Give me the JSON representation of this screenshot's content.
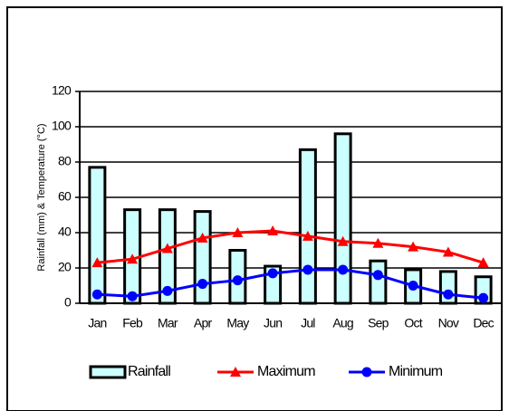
{
  "chart_data": {
    "type": "combo",
    "ylabel": "Rainfall (mm) & Temperature (°C)",
    "categories": [
      "Jan",
      "Feb",
      "Mar",
      "Apr",
      "May",
      "Jun",
      "Jul",
      "Aug",
      "Sep",
      "Oct",
      "Nov",
      "Dec"
    ],
    "series": [
      {
        "name": "Rainfall",
        "type": "bar",
        "color": "#ccffff",
        "values": [
          77,
          53,
          53,
          52,
          30,
          21,
          87,
          96,
          24,
          19,
          18,
          15
        ]
      },
      {
        "name": "Maximum",
        "type": "line",
        "marker": "triangle",
        "color": "#ff0000",
        "values": [
          23,
          25,
          31,
          37,
          40,
          41,
          38,
          35,
          34,
          32,
          29,
          23
        ]
      },
      {
        "name": "Minimum",
        "type": "line",
        "marker": "circle",
        "color": "#0000ff",
        "values": [
          5,
          4,
          7,
          11,
          13,
          17,
          19,
          19,
          16,
          10,
          5,
          3
        ]
      }
    ],
    "ylim": [
      0,
      120
    ],
    "yticks": [
      0,
      20,
      40,
      60,
      80,
      100,
      120
    ],
    "grid": true,
    "legend": "bottom"
  }
}
